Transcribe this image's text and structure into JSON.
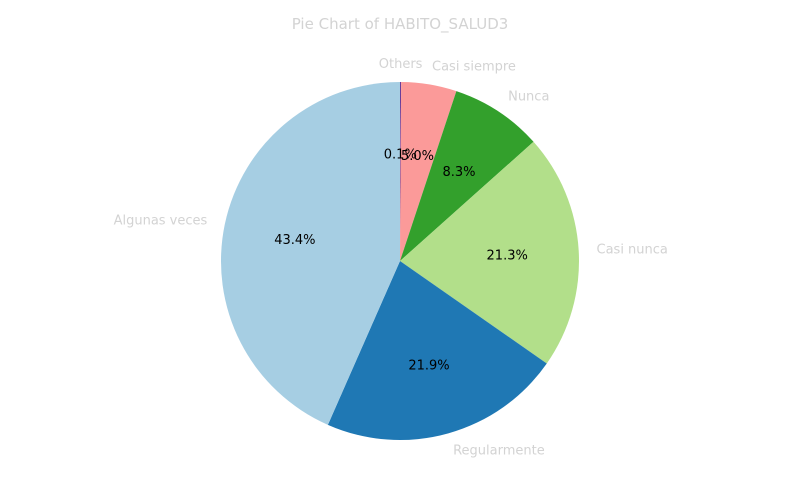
{
  "chart_data": {
    "type": "pie",
    "title": "Pie Chart of HABITO_SALUD3",
    "start_angle_deg": 90,
    "direction": "clockwise",
    "slices": [
      {
        "label": "Others",
        "value": 0.1,
        "pct_label": "0.1%",
        "color": "#6a3d9a"
      },
      {
        "label": "Casi siempre",
        "value": 5.0,
        "pct_label": "5.0%",
        "color": "#fb9a99"
      },
      {
        "label": "Nunca",
        "value": 8.3,
        "pct_label": "8.3%",
        "color": "#33a02c"
      },
      {
        "label": "Casi nunca",
        "value": 21.3,
        "pct_label": "21.3%",
        "color": "#b2df8a"
      },
      {
        "label": "Regularmente",
        "value": 21.9,
        "pct_label": "21.9%",
        "color": "#1f78b4"
      },
      {
        "label": "Algunas veces",
        "value": 43.4,
        "pct_label": "43.4%",
        "color": "#a6cee3"
      }
    ]
  }
}
